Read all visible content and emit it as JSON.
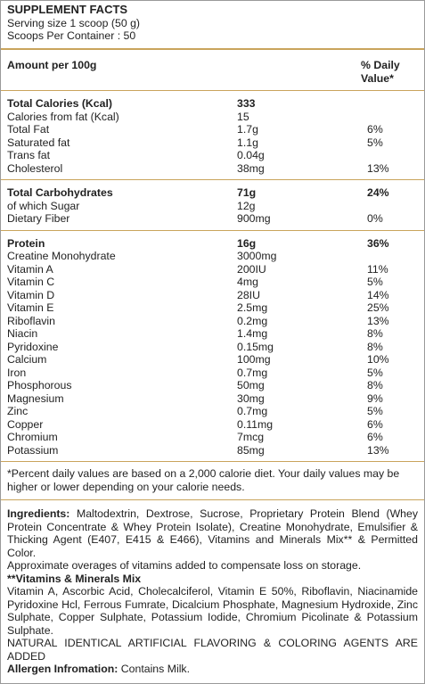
{
  "header": {
    "title": "SUPPLEMENT FACTS",
    "serving_size": "Serving size 1 scoop (50 g)",
    "servings_per_container": "Scoops Per Container : 50"
  },
  "columns": {
    "amount": "Amount per 100g",
    "daily_value": "% Daily Value*"
  },
  "sections": [
    {
      "rows": [
        {
          "name": "Total Calories (Kcal)",
          "amount": "333"
        },
        {
          "name": "Calories from fat (Kcal)",
          "amount": "15"
        },
        {
          "name": "Total Fat",
          "amount": "1.7g",
          "daily_value": "6%"
        },
        {
          "name": "Saturated fat",
          "amount": "1.1g",
          "daily_value": "5%"
        },
        {
          "name": "Trans fat",
          "amount": "0.04g"
        },
        {
          "name": "Cholesterol",
          "amount": "38mg",
          "daily_value": "13%"
        }
      ]
    },
    {
      "rows": [
        {
          "name": "Total Carbohydrates",
          "amount": "71g",
          "daily_value": "24%"
        },
        {
          "name": "of which Sugar",
          "amount": "12g"
        },
        {
          "name": "Dietary Fiber",
          "amount": "900mg",
          "daily_value": "0%"
        }
      ]
    },
    {
      "rows": [
        {
          "name": "Protein",
          "amount": "16g",
          "daily_value": "36%"
        },
        {
          "name": "Creatine Monohydrate",
          "amount": "3000mg"
        },
        {
          "name": "Vitamin A",
          "amount": "200IU",
          "daily_value": "11%"
        },
        {
          "name": "Vitamin C",
          "amount": "4mg",
          "daily_value": "5%"
        },
        {
          "name": "Vitamin D",
          "amount": "28IU",
          "daily_value": "14%"
        },
        {
          "name": "Vitamin E",
          "amount": "2.5mg",
          "daily_value": "25%"
        },
        {
          "name": "Riboflavin",
          "amount": "0.2mg",
          "daily_value": "13%"
        },
        {
          "name": "Niacin",
          "amount": "1.4mg",
          "daily_value": "8%"
        },
        {
          "name": "Pyridoxine",
          "amount": "0.15mg",
          "daily_value": "8%"
        },
        {
          "name": "Calcium",
          "amount": "100mg",
          "daily_value": "10%"
        },
        {
          "name": "Iron",
          "amount": "0.7mg",
          "daily_value": "5%"
        },
        {
          "name": "Phosphorous",
          "amount": "50mg",
          "daily_value": "8%"
        },
        {
          "name": "Magnesium",
          "amount": "30mg",
          "daily_value": "9%"
        },
        {
          "name": "Zinc",
          "amount": "0.7mg",
          "daily_value": "5%"
        },
        {
          "name": "Copper",
          "amount": "0.11mg",
          "daily_value": "6%"
        },
        {
          "name": "Chromium",
          "amount": "7mcg",
          "daily_value": "6%"
        },
        {
          "name": "Potassium",
          "amount": "85mg",
          "daily_value": "13%"
        }
      ]
    }
  ],
  "footnote": "*Percent daily values are based on a 2,000 calorie diet. Your daily values may be higher or lower depending on your calorie needs.",
  "ingredients": {
    "label": "Ingredients:",
    "text": "Maltodextrin, Dextrose, Sucrose, Proprietary Protein Blend (Whey Protein Concentrate & Whey Protein Isolate), Creatine Monohydrate, Emulsifier & Thicking Agent (E407, E415 & E466), Vitamins and Minerals Mix** & Permitted Color."
  },
  "overages": "Approximate overages of vitamins added to compensate loss on storage.",
  "mix": {
    "label": "**Vitamins & Minerals Mix",
    "text": "Vitamin A, Ascorbic Acid, Cholecalciferol, Vitamin E 50%, Riboflavin, Niacinamide Pyridoxine Hcl, Ferrous Fumrate, Dicalcium Phosphate, Magnesium Hydroxide, Zinc Sulphate, Copper Sulphate, Potassium Iodide, Chromium Picolinate & Potassium Sulphate."
  },
  "flavoring": "NATURAL IDENTICAL ARTIFICIAL FLAVORING & COLORING AGENTS ARE ADDED",
  "allergen": {
    "label": "Allergen Infromation:",
    "text": "Contains Milk."
  }
}
